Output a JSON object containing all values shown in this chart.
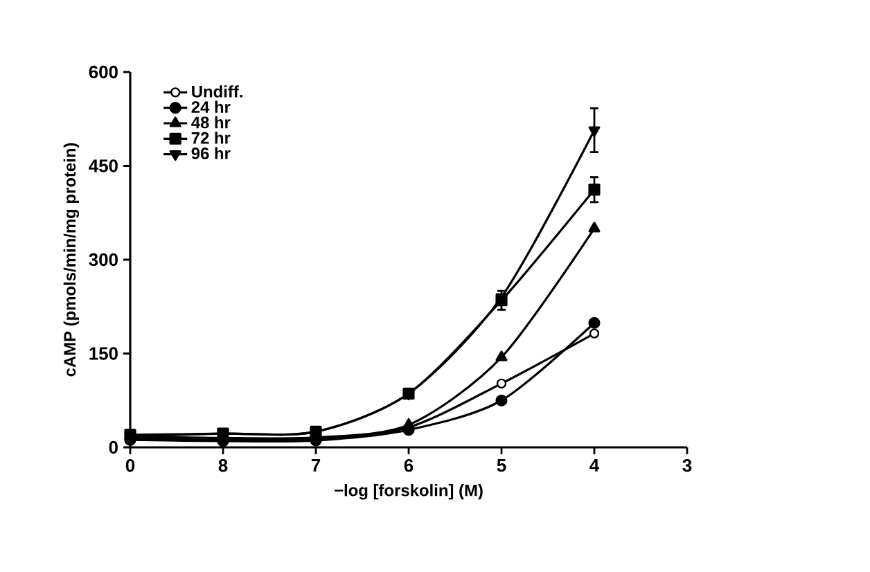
{
  "chart_data": {
    "type": "line",
    "xlabel": "−log [forskolin] (M)",
    "ylabel": "cAMP (pmols/min/mg protein)",
    "categories": [
      "0",
      "8",
      "7",
      "6",
      "5",
      "4",
      "3"
    ],
    "ylim": [
      0,
      600
    ],
    "yticks": [
      0,
      150,
      300,
      450,
      600
    ],
    "legend": "top left",
    "grid": false,
    "series": [
      {
        "name": "Undiff.",
        "color": "#000000",
        "marker": "circle-open",
        "values": [
          15,
          12,
          13,
          32,
          102,
          182,
          null
        ]
      },
      {
        "name": "24 hr",
        "color": "#000000",
        "marker": "circle",
        "values": [
          12,
          10,
          11,
          28,
          75,
          199,
          null
        ]
      },
      {
        "name": "48 hr",
        "color": "#000000",
        "marker": "triangle",
        "values": [
          18,
          15,
          16,
          36,
          144,
          350,
          null
        ]
      },
      {
        "name": "72 hr",
        "color": "#000000",
        "marker": "square",
        "values": [
          20,
          22,
          25,
          86,
          235,
          412,
          null
        ],
        "errors": [
          null,
          null,
          null,
          null,
          15,
          20,
          null
        ]
      },
      {
        "name": "96 hr",
        "color": "#000000",
        "marker": "triangle-down",
        "values": [
          18,
          22,
          25,
          86,
          240,
          507,
          null
        ],
        "errors": [
          null,
          null,
          null,
          null,
          null,
          35,
          null
        ]
      }
    ]
  }
}
